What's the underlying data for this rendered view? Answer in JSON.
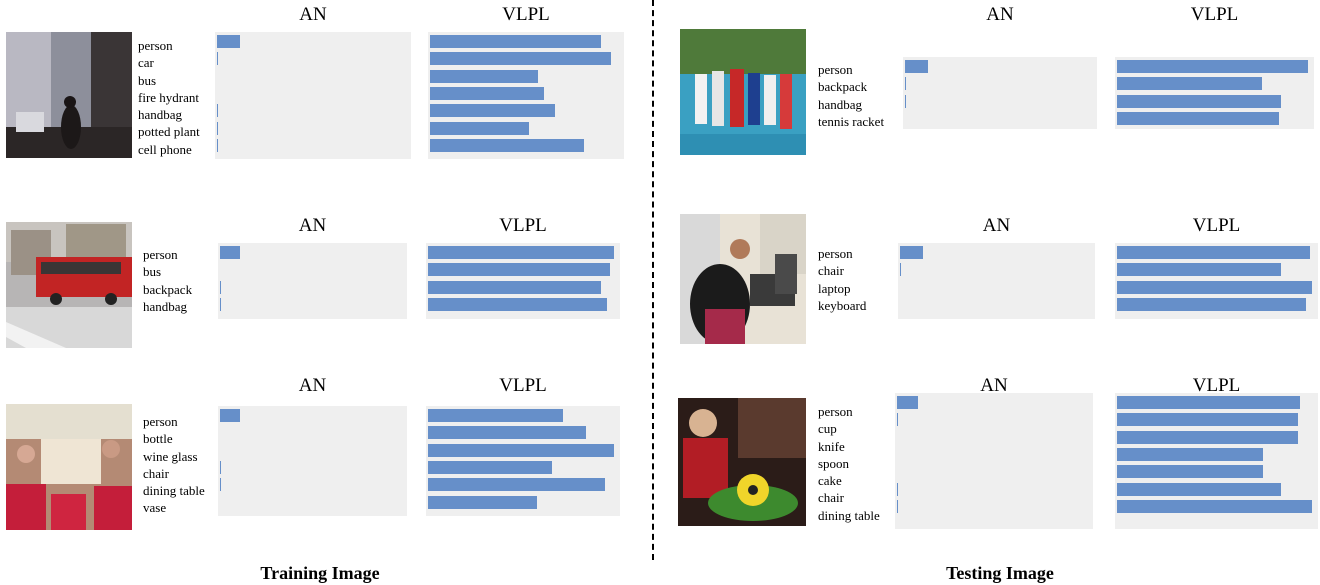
{
  "sections": {
    "left": "Training Image",
    "right": "Testing Image"
  },
  "panels": [
    {
      "id": "train-1",
      "labels": [
        "person",
        "car",
        "bus",
        "fire hydrant",
        "handbag",
        "potted plant",
        "cell phone"
      ],
      "chart_data": [
        {
          "type": "bar",
          "orientation": "horizontal",
          "title": "AN",
          "categories": [
            "person",
            "car",
            "bus",
            "fire hydrant",
            "handbag",
            "potted plant",
            "cell phone"
          ],
          "values": [
            0.12,
            0.005,
            0,
            0,
            0.005,
            0.005,
            0.005
          ],
          "xlim": [
            0,
            1
          ]
        },
        {
          "type": "bar",
          "orientation": "horizontal",
          "title": "VLPL",
          "categories": [
            "person",
            "car",
            "bus",
            "fire hydrant",
            "handbag",
            "potted plant",
            "cell phone"
          ],
          "values": [
            0.9,
            0.95,
            0.57,
            0.6,
            0.66,
            0.52,
            0.81
          ],
          "xlim": [
            0,
            1
          ]
        }
      ]
    },
    {
      "id": "train-2",
      "labels": [
        "person",
        "bus",
        "backpack",
        "handbag"
      ],
      "chart_data": [
        {
          "type": "bar",
          "orientation": "horizontal",
          "title": "AN",
          "categories": [
            "person",
            "bus",
            "backpack",
            "handbag"
          ],
          "values": [
            0.11,
            0,
            0.005,
            0.005
          ],
          "xlim": [
            0,
            1
          ]
        },
        {
          "type": "bar",
          "orientation": "horizontal",
          "title": "VLPL",
          "categories": [
            "person",
            "bus",
            "backpack",
            "handbag"
          ],
          "values": [
            0.99,
            0.97,
            0.92,
            0.95
          ],
          "xlim": [
            0,
            1
          ]
        }
      ]
    },
    {
      "id": "train-3",
      "labels": [
        "person",
        "bottle",
        "wine glass",
        "chair",
        "dining table",
        "vase"
      ],
      "chart_data": [
        {
          "type": "bar",
          "orientation": "horizontal",
          "title": "AN",
          "categories": [
            "person",
            "bottle",
            "wine glass",
            "chair",
            "dining table",
            "vase"
          ],
          "values": [
            0.11,
            0,
            0,
            0.005,
            0.005,
            0
          ],
          "xlim": [
            0,
            1
          ]
        },
        {
          "type": "bar",
          "orientation": "horizontal",
          "title": "VLPL",
          "categories": [
            "person",
            "bottle",
            "wine glass",
            "chair",
            "dining table",
            "vase"
          ],
          "values": [
            0.72,
            0.84,
            0.99,
            0.66,
            0.94,
            0.58
          ],
          "xlim": [
            0,
            1
          ]
        }
      ]
    },
    {
      "id": "test-1",
      "labels": [
        "person",
        "backpack",
        "handbag",
        "tennis racket"
      ],
      "chart_data": [
        {
          "type": "bar",
          "orientation": "horizontal",
          "title": "AN",
          "categories": [
            "person",
            "backpack",
            "handbag",
            "tennis racket"
          ],
          "values": [
            0.12,
            0.005,
            0.005,
            0
          ],
          "xlim": [
            0,
            1
          ]
        },
        {
          "type": "bar",
          "orientation": "horizontal",
          "title": "VLPL",
          "categories": [
            "person",
            "backpack",
            "handbag",
            "tennis racket"
          ],
          "values": [
            0.99,
            0.75,
            0.85,
            0.84
          ],
          "xlim": [
            0,
            1
          ]
        }
      ]
    },
    {
      "id": "test-2",
      "labels": [
        "person",
        "chair",
        "laptop",
        "keyboard"
      ],
      "chart_data": [
        {
          "type": "bar",
          "orientation": "horizontal",
          "title": "AN",
          "categories": [
            "person",
            "chair",
            "laptop",
            "keyboard"
          ],
          "values": [
            0.12,
            0.005,
            0,
            0
          ],
          "xlim": [
            0,
            1
          ]
        },
        {
          "type": "bar",
          "orientation": "horizontal",
          "title": "VLPL",
          "categories": [
            "person",
            "chair",
            "laptop",
            "keyboard"
          ],
          "values": [
            0.98,
            0.83,
            0.99,
            0.96
          ],
          "xlim": [
            0,
            1
          ]
        }
      ]
    },
    {
      "id": "test-3",
      "labels": [
        "person",
        "cup",
        "knife",
        "spoon",
        "cake",
        "chair",
        "dining table"
      ],
      "chart_data": [
        {
          "type": "bar",
          "orientation": "horizontal",
          "title": "AN",
          "categories": [
            "person",
            "cup",
            "knife",
            "spoon",
            "cake",
            "chair",
            "dining table"
          ],
          "values": [
            0.11,
            0.005,
            0,
            0,
            0,
            0.005,
            0.005
          ],
          "xlim": [
            0,
            1
          ]
        },
        {
          "type": "bar",
          "orientation": "horizontal",
          "title": "VLPL",
          "categories": [
            "person",
            "cup",
            "knife",
            "spoon",
            "cake",
            "chair",
            "dining table"
          ],
          "values": [
            0.93,
            0.92,
            0.92,
            0.74,
            0.74,
            0.83,
            0.99
          ],
          "xlim": [
            0,
            1
          ]
        }
      ]
    }
  ],
  "colors": {
    "bar": "#668fc9",
    "chart_bg": "#efefef"
  }
}
